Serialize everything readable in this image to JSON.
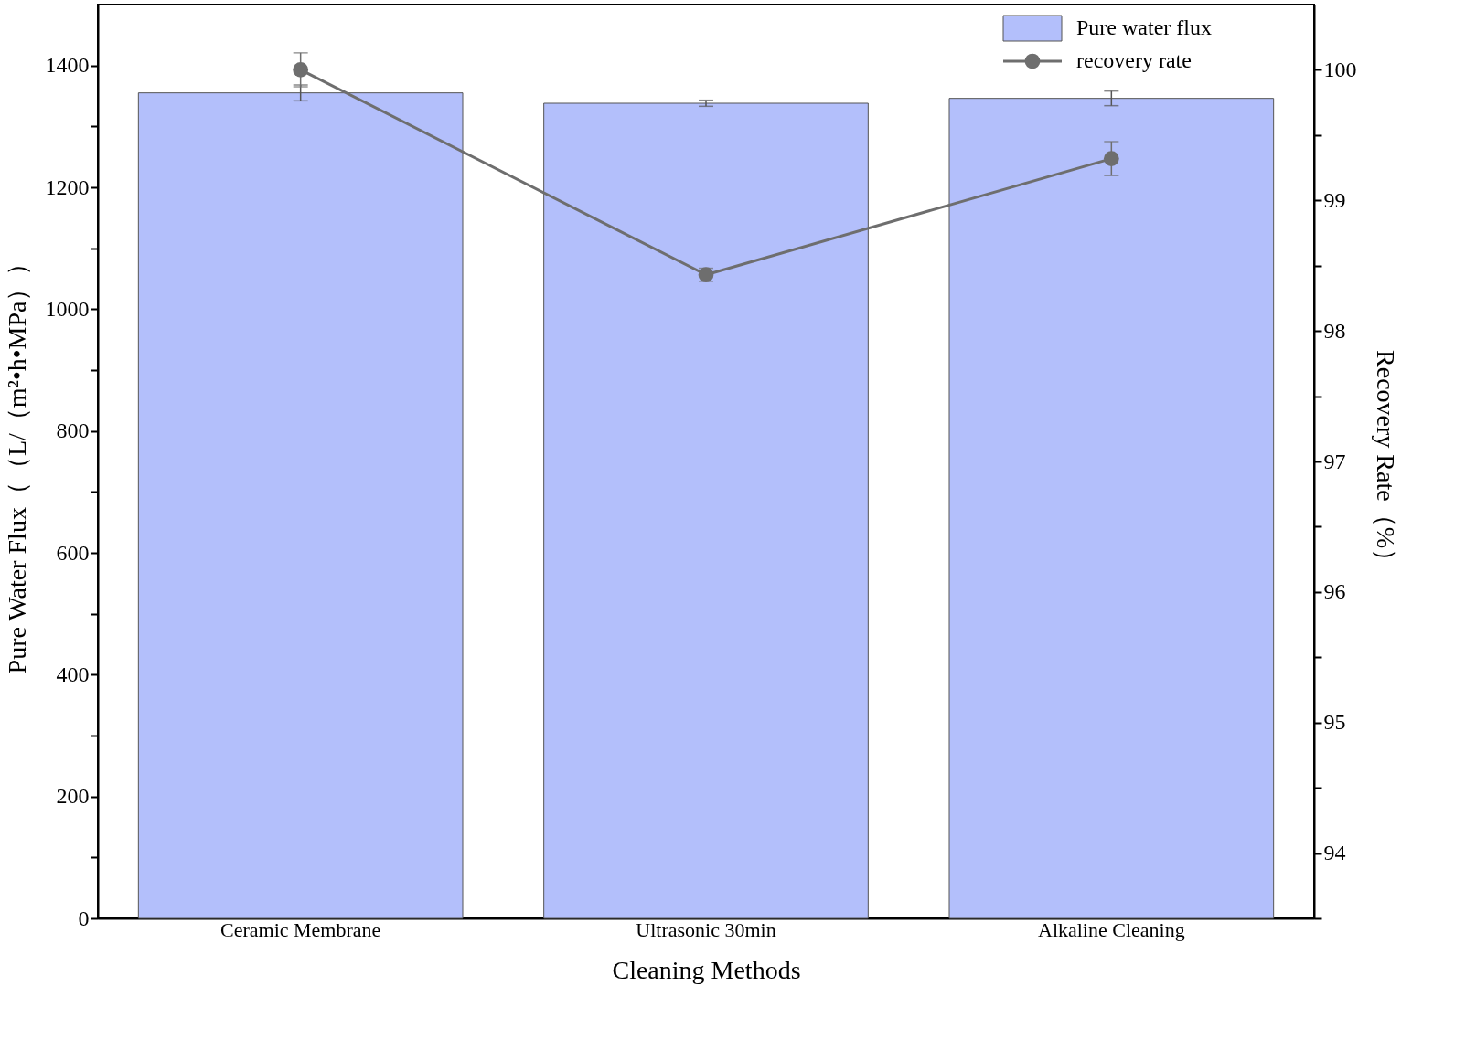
{
  "chart_data": {
    "type": "bar",
    "xlabel": "Cleaning Methods",
    "ylabel": "Pure Water Flux（（L/（m²•h•MPa））",
    "y2label": "Recovery Rate（%）",
    "categories": [
      "Ceramic Membrane",
      "Ultrasonic 30min",
      "Alkaline Cleaning"
    ],
    "series": [
      {
        "name": "Pure water flux",
        "color": "#b3bffb",
        "values": [
          1355,
          1338,
          1346
        ],
        "errors": [
          13,
          5,
          12
        ]
      },
      {
        "name": "recovery rate",
        "type": "line",
        "axis": "y2",
        "color": "#6e6e6e",
        "values": [
          100.0,
          98.43,
          99.32
        ],
        "errors": [
          0.13,
          0.05,
          0.13
        ]
      }
    ],
    "ylim": [
      0,
      1500
    ],
    "yticks": [
      0,
      {
        "value": 100,
        "label": null
      },
      200,
      {
        "value": 300,
        "label": null
      },
      400,
      {
        "value": 500,
        "label": null
      },
      600,
      {
        "value": 700,
        "label": null
      },
      800,
      {
        "value": 900,
        "label": null
      },
      1000,
      {
        "value": 1100,
        "label": null
      },
      1200,
      {
        "value": 1300,
        "label": null
      },
      1400
    ],
    "y2lim": [
      93.5,
      100.5
    ],
    "y2ticks": [
      {
        "value": 93.5,
        "label": null
      },
      94,
      {
        "value": 94.5,
        "label": null
      },
      95,
      {
        "value": 95.5,
        "label": null
      },
      96,
      {
        "value": 96.5,
        "label": null
      },
      97,
      {
        "value": 97.5,
        "label": null
      },
      98,
      {
        "value": 98.5,
        "label": null
      },
      99,
      {
        "value": 99.5,
        "label": null
      },
      100
    ],
    "marker": "circle",
    "grid": false,
    "legend": "top right"
  }
}
